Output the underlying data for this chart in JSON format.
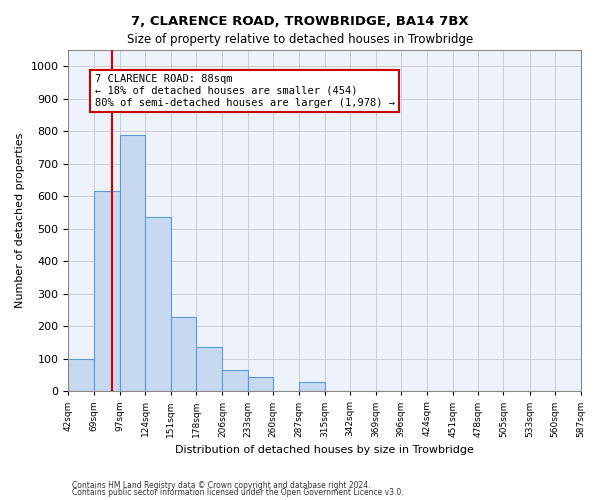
{
  "title": "7, CLARENCE ROAD, TROWBRIDGE, BA14 7BX",
  "subtitle": "Size of property relative to detached houses in Trowbridge",
  "xlabel": "Distribution of detached houses by size in Trowbridge",
  "ylabel": "Number of detached properties",
  "footnote1": "Contains HM Land Registry data © Crown copyright and database right 2024.",
  "footnote2": "Contains public sector information licensed under the Open Government Licence v3.0.",
  "annotation_line1": "7 CLARENCE ROAD: 88sqm",
  "annotation_line2": "← 18% of detached houses are smaller (454)",
  "annotation_line3": "80% of semi-detached houses are larger (1,978) →",
  "bar_color": "#c6d9f0",
  "bar_edge_color": "#5b9bd5",
  "grid_color": "#c8c8d0",
  "background_color": "#eef2fa",
  "red_line_color": "#cc0000",
  "annotation_box_color": "#cc0000",
  "bins": [
    42,
    69,
    97,
    124,
    151,
    178,
    206,
    233,
    260,
    287,
    315,
    342,
    369,
    396,
    424,
    451,
    478,
    505,
    533,
    560,
    587
  ],
  "heights": [
    100,
    615,
    790,
    535,
    230,
    135,
    65,
    45,
    0,
    30,
    0,
    0,
    0,
    0,
    0,
    0,
    0,
    0,
    0,
    0
  ],
  "red_line_x": 88,
  "ylim": [
    0,
    1050
  ],
  "yticks": [
    0,
    100,
    200,
    300,
    400,
    500,
    600,
    700,
    800,
    900,
    1000
  ]
}
